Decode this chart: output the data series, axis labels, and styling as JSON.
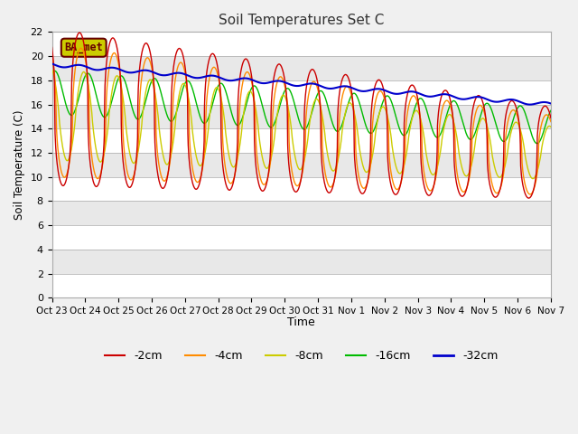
{
  "title": "Soil Temperatures Set C",
  "xlabel": "Time",
  "ylabel": "Soil Temperature (C)",
  "ylim": [
    0,
    22
  ],
  "yticks": [
    0,
    2,
    4,
    6,
    8,
    10,
    12,
    14,
    16,
    18,
    20,
    22
  ],
  "xtick_labels": [
    "Oct 23",
    "Oct 24",
    "Oct 25",
    "Oct 26",
    "Oct 27",
    "Oct 28",
    "Oct 29",
    "Oct 30",
    "Oct 31",
    "Nov 1",
    "Nov 2",
    "Nov 3",
    "Nov 4",
    "Nov 5",
    "Nov 6",
    "Nov 7"
  ],
  "series": {
    "-2cm": {
      "color": "#CC0000",
      "linewidth": 1.0
    },
    "-4cm": {
      "color": "#FF8C00",
      "linewidth": 1.0
    },
    "-8cm": {
      "color": "#CCCC00",
      "linewidth": 1.0
    },
    "-16cm": {
      "color": "#00BB00",
      "linewidth": 1.0
    },
    "-32cm": {
      "color": "#0000CC",
      "linewidth": 1.5
    }
  },
  "annotation_text": "BA_met",
  "annotation_bg": "#CCCC00",
  "annotation_border": "#660000",
  "band_colors": [
    "#FFFFFF",
    "#E8E8E8"
  ],
  "days": 15,
  "n_points": 1440
}
